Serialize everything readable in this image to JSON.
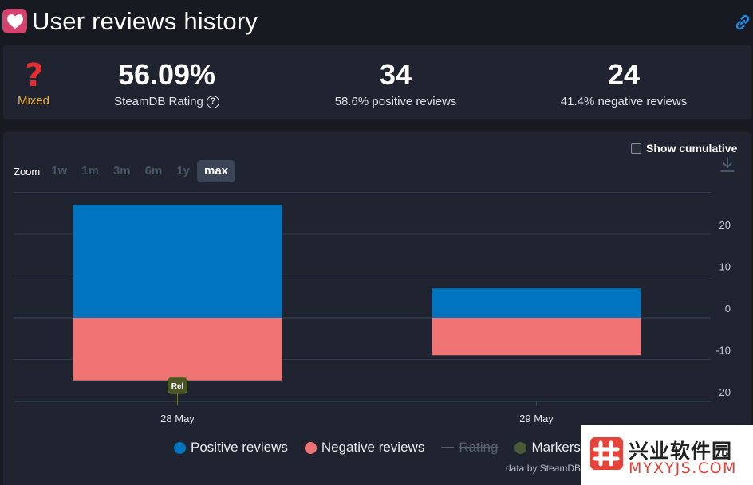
{
  "header": {
    "title": "User reviews history",
    "heart_icon": "heart-icon",
    "link_icon": "link-icon",
    "accent": "#d6426e"
  },
  "summary": {
    "verdict_icon": "question-mark-icon",
    "verdict": "Mixed",
    "verdict_color": "#e8b13a",
    "rating_value": "56.09%",
    "rating_label": "SteamDB Rating",
    "positive_count": "34",
    "positive_label": "58.6% positive reviews",
    "negative_count": "24",
    "negative_label": "41.4% negative reviews"
  },
  "controls": {
    "show_cumulative": "Show cumulative",
    "zoom_label": "Zoom",
    "zoom_options": [
      "1w",
      "1m",
      "3m",
      "6m",
      "1y",
      "max"
    ],
    "zoom_active": "max",
    "download_icon": "download-icon"
  },
  "legend": {
    "positive": "Positive reviews",
    "negative": "Negative reviews",
    "rating": "Rating",
    "markers": "Markers"
  },
  "credit": "data by SteamDB",
  "chart_data": {
    "type": "bar",
    "stacked": true,
    "categories": [
      "28 May",
      "29 May"
    ],
    "series": [
      {
        "name": "Positive reviews",
        "values": [
          27,
          7
        ],
        "color": "#0074bf"
      },
      {
        "name": "Negative reviews",
        "values": [
          -15,
          -9
        ],
        "color": "#f07474"
      }
    ],
    "y_ticks": [
      20,
      10,
      0,
      -10,
      -20
    ],
    "ylim": [
      -20,
      30
    ],
    "y_axis_position": "right",
    "grid": true,
    "legend_position": "bottom-center",
    "markers": [
      {
        "category": "28 May",
        "label": "Rel"
      }
    ]
  },
  "watermark": {
    "cn": "兴业软件园",
    "en": "MYXYJS.COM"
  }
}
